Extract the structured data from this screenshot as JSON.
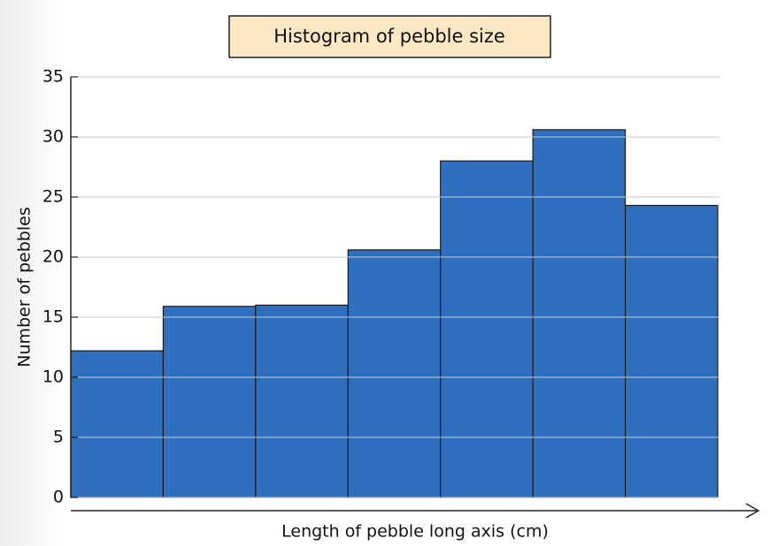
{
  "chart_data": {
    "type": "histogram",
    "title": "Histogram of pebble size",
    "x_label": "Length of pebble long axis (cm)",
    "y_label": "Number of pebbles",
    "categories": [
      null,
      null,
      null,
      null,
      null,
      null,
      null
    ],
    "values": [
      12.2,
      15.9,
      16,
      20.6,
      28,
      30.6,
      24.3
    ],
    "color": "#2f6fbe",
    "ylim": [
      0,
      35
    ],
    "yticks": [
      0,
      5,
      10,
      15,
      20,
      25,
      30,
      35
    ],
    "grid": true
  }
}
